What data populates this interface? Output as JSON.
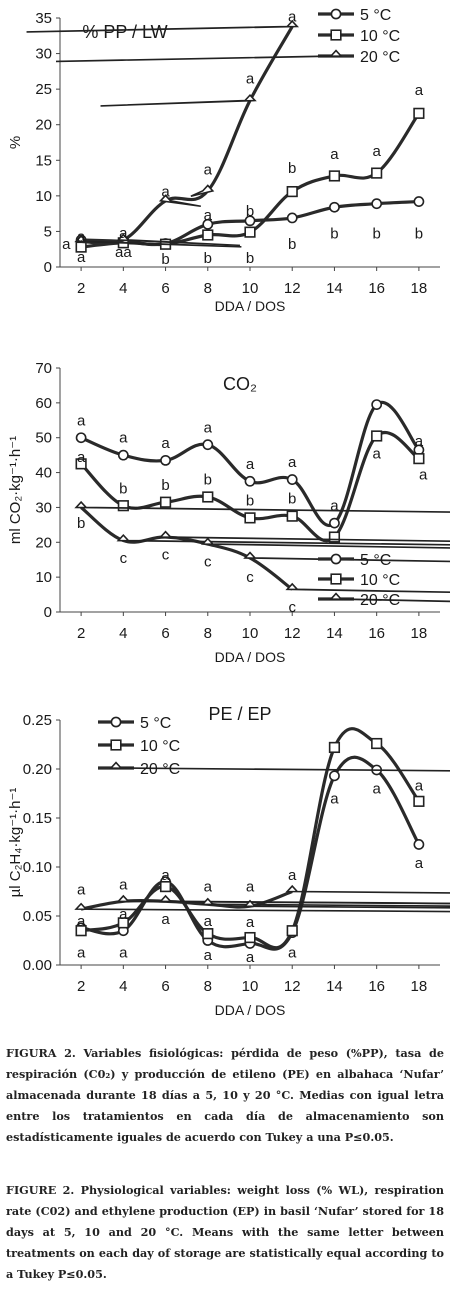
{
  "chart_data": [
    {
      "type": "line",
      "title": "% PP / LW",
      "xlabel": "DDA / DOS",
      "ylabel": "%",
      "x": [
        2,
        4,
        6,
        8,
        10,
        12,
        14,
        16,
        18
      ],
      "xlim": [
        1,
        19
      ],
      "ylim": [
        0,
        35
      ],
      "yticks": [
        0,
        5,
        10,
        15,
        20,
        25,
        30,
        35
      ],
      "legend_position": "top-right",
      "grid": false,
      "series": [
        {
          "name": "5 °C",
          "marker": "circle",
          "values": [
            3.8,
            3.6,
            3.3,
            6.0,
            6.5,
            6.9,
            8.4,
            8.9,
            9.2
          ]
        },
        {
          "name": "10 °C",
          "marker": "square",
          "values": [
            2.8,
            3.4,
            3.2,
            4.5,
            4.9,
            10.6,
            12.8,
            13.2,
            21.6
          ]
        },
        {
          "name": "20 °C",
          "marker": "diamond",
          "values": [
            3.6,
            3.8,
            9.3,
            10.7,
            23.4,
            33.8,
            null,
            null,
            null
          ]
        }
      ],
      "letters": [
        {
          "x": 2,
          "y": 4.3,
          "text": "a"
        },
        {
          "x": 2,
          "y": 1.4,
          "text": "a"
        },
        {
          "x": 1.3,
          "y": 3.2,
          "text": "a"
        },
        {
          "x": 4,
          "y": 4.8,
          "text": "a"
        },
        {
          "x": 4,
          "y": 2.1,
          "text": "aa"
        },
        {
          "x": 6,
          "y": 10.6,
          "text": "a"
        },
        {
          "x": 6,
          "y": 1.1,
          "text": "b"
        },
        {
          "x": 8,
          "y": 13.7,
          "text": "a"
        },
        {
          "x": 8,
          "y": 7.3,
          "text": "a"
        },
        {
          "x": 8,
          "y": 1.3,
          "text": "b"
        },
        {
          "x": 10,
          "y": 26.5,
          "text": "a"
        },
        {
          "x": 10,
          "y": 7.9,
          "text": "b"
        },
        {
          "x": 10,
          "y": 1.3,
          "text": "b"
        },
        {
          "x": 12,
          "y": 35.2,
          "text": "a"
        },
        {
          "x": 12,
          "y": 13.9,
          "text": "b"
        },
        {
          "x": 12,
          "y": 3.2,
          "text": "b"
        },
        {
          "x": 14,
          "y": 15.9,
          "text": "a"
        },
        {
          "x": 14,
          "y": 4.7,
          "text": "b"
        },
        {
          "x": 16,
          "y": 16.3,
          "text": "a"
        },
        {
          "x": 16,
          "y": 4.7,
          "text": "b"
        },
        {
          "x": 18,
          "y": 24.9,
          "text": "a"
        },
        {
          "x": 18,
          "y": 4.7,
          "text": "b"
        }
      ]
    },
    {
      "type": "line",
      "title": "CO₂",
      "xlabel": "DDA / DOS",
      "ylabel": "ml CO₂·kg⁻¹·h⁻¹",
      "x": [
        2,
        4,
        6,
        8,
        10,
        12,
        14,
        16,
        18
      ],
      "xlim": [
        1,
        19
      ],
      "ylim": [
        0,
        70
      ],
      "yticks": [
        0,
        10,
        20,
        30,
        40,
        50,
        60,
        70
      ],
      "legend_position": "bottom-right",
      "grid": false,
      "series": [
        {
          "name": "5 °C",
          "marker": "circle",
          "values": [
            50,
            45,
            43.5,
            48,
            37.5,
            38,
            25.5,
            59.5,
            46.5
          ]
        },
        {
          "name": "10 °C",
          "marker": "square",
          "values": [
            42.5,
            30.5,
            31.5,
            33,
            27,
            27.5,
            21.5,
            50.5,
            44
          ]
        },
        {
          "name": "20 °C",
          "marker": "diamond",
          "values": [
            30,
            20.5,
            21.5,
            19.5,
            15.5,
            6.5,
            null,
            null,
            null
          ]
        }
      ],
      "letters": [
        {
          "x": 2,
          "y": 55,
          "text": "a"
        },
        {
          "x": 2,
          "y": 44.5,
          "text": "a"
        },
        {
          "x": 2,
          "y": 25.5,
          "text": "b"
        },
        {
          "x": 4,
          "y": 50,
          "text": "a"
        },
        {
          "x": 4,
          "y": 35.5,
          "text": "b"
        },
        {
          "x": 4,
          "y": 15.5,
          "text": "c"
        },
        {
          "x": 6,
          "y": 48.5,
          "text": "a"
        },
        {
          "x": 6,
          "y": 36.5,
          "text": "b"
        },
        {
          "x": 6,
          "y": 16.5,
          "text": "c"
        },
        {
          "x": 8,
          "y": 53,
          "text": "a"
        },
        {
          "x": 8,
          "y": 38,
          "text": "b"
        },
        {
          "x": 8,
          "y": 14.5,
          "text": "c"
        },
        {
          "x": 10,
          "y": 42.5,
          "text": "a"
        },
        {
          "x": 10,
          "y": 32,
          "text": "b"
        },
        {
          "x": 10,
          "y": 10,
          "text": "c"
        },
        {
          "x": 12,
          "y": 43,
          "text": "a"
        },
        {
          "x": 12,
          "y": 32.5,
          "text": "b"
        },
        {
          "x": 12,
          "y": 1.5,
          "text": "c"
        },
        {
          "x": 14,
          "y": 30.5,
          "text": "a"
        },
        {
          "x": 16,
          "y": 45.5,
          "text": "a"
        },
        {
          "x": 18,
          "y": 49,
          "text": "a"
        },
        {
          "x": 18.2,
          "y": 39.5,
          "text": "a"
        }
      ]
    },
    {
      "type": "line",
      "title": "PE / EP",
      "xlabel": "DDA / DOS",
      "ylabel": "µl C₂H₄·kg⁻¹·h⁻¹",
      "x": [
        2,
        4,
        6,
        8,
        10,
        12,
        14,
        16,
        18
      ],
      "xlim": [
        1,
        19
      ],
      "ylim": [
        0,
        0.25
      ],
      "yticks": [
        0.0,
        0.05,
        0.1,
        0.15,
        0.2,
        0.25
      ],
      "legend_position": "top-left",
      "grid": false,
      "series": [
        {
          "name": "5 °C",
          "marker": "circle",
          "values": [
            0.038,
            0.035,
            0.085,
            0.025,
            0.022,
            0.033,
            0.193,
            0.199,
            0.123
          ]
        },
        {
          "name": "10 °C",
          "marker": "square",
          "values": [
            0.035,
            0.043,
            0.08,
            0.032,
            0.028,
            0.035,
            0.222,
            0.226,
            0.167
          ]
        },
        {
          "name": "20 °C",
          "marker": "diamond",
          "values": [
            0.057,
            0.065,
            0.065,
            0.062,
            0.06,
            0.075,
            null,
            null,
            null
          ]
        }
      ],
      "letters": [
        {
          "x": 2,
          "y": 0.077,
          "text": "a"
        },
        {
          "x": 2,
          "y": 0.045,
          "text": "a"
        },
        {
          "x": 2,
          "y": 0.013,
          "text": "a"
        },
        {
          "x": 4,
          "y": 0.082,
          "text": "a"
        },
        {
          "x": 4,
          "y": 0.052,
          "text": "a"
        },
        {
          "x": 4,
          "y": 0.013,
          "text": "a"
        },
        {
          "x": 6,
          "y": 0.092,
          "text": "a"
        },
        {
          "x": 6,
          "y": 0.047,
          "text": "a"
        },
        {
          "x": 8,
          "y": 0.08,
          "text": "a"
        },
        {
          "x": 8,
          "y": 0.045,
          "text": "a"
        },
        {
          "x": 8,
          "y": 0.01,
          "text": "a"
        },
        {
          "x": 10,
          "y": 0.08,
          "text": "a"
        },
        {
          "x": 10,
          "y": 0.044,
          "text": "a"
        },
        {
          "x": 10,
          "y": 0.008,
          "text": "a"
        },
        {
          "x": 12,
          "y": 0.092,
          "text": "a"
        },
        {
          "x": 12,
          "y": 0.013,
          "text": "a"
        },
        {
          "x": 14,
          "y": 0.17,
          "text": "a"
        },
        {
          "x": 16,
          "y": 0.18,
          "text": "a"
        },
        {
          "x": 18,
          "y": 0.104,
          "text": "a"
        },
        {
          "x": 18,
          "y": 0.183,
          "text": "a"
        }
      ]
    }
  ],
  "caption_es": {
    "label": "FIGURA 2.",
    "text": "Variables fisiológicas: pérdida de peso (%PP), tasa de respiración (C0₂) y producción de etileno (PE) en albahaca ‘Nufar’ almacenada durante 18 días a 5, 10 y 20 °C. Medias con igual letra entre los tratamientos en cada día de almacenamiento son estadísticamente iguales de acuerdo con Tukey a una P≤0.05."
  },
  "caption_en": {
    "label": "FIGURE 2.",
    "text": "Physiological variables: weight loss (% WL), respiration rate (C02) and ethylene production (EP) in basil ‘Nufar’ stored for 18 days at 5, 10 and 20 °C. Means with the same letter between treatments on each day of storage are statistically equal according to a Tukey P≤0.05."
  }
}
